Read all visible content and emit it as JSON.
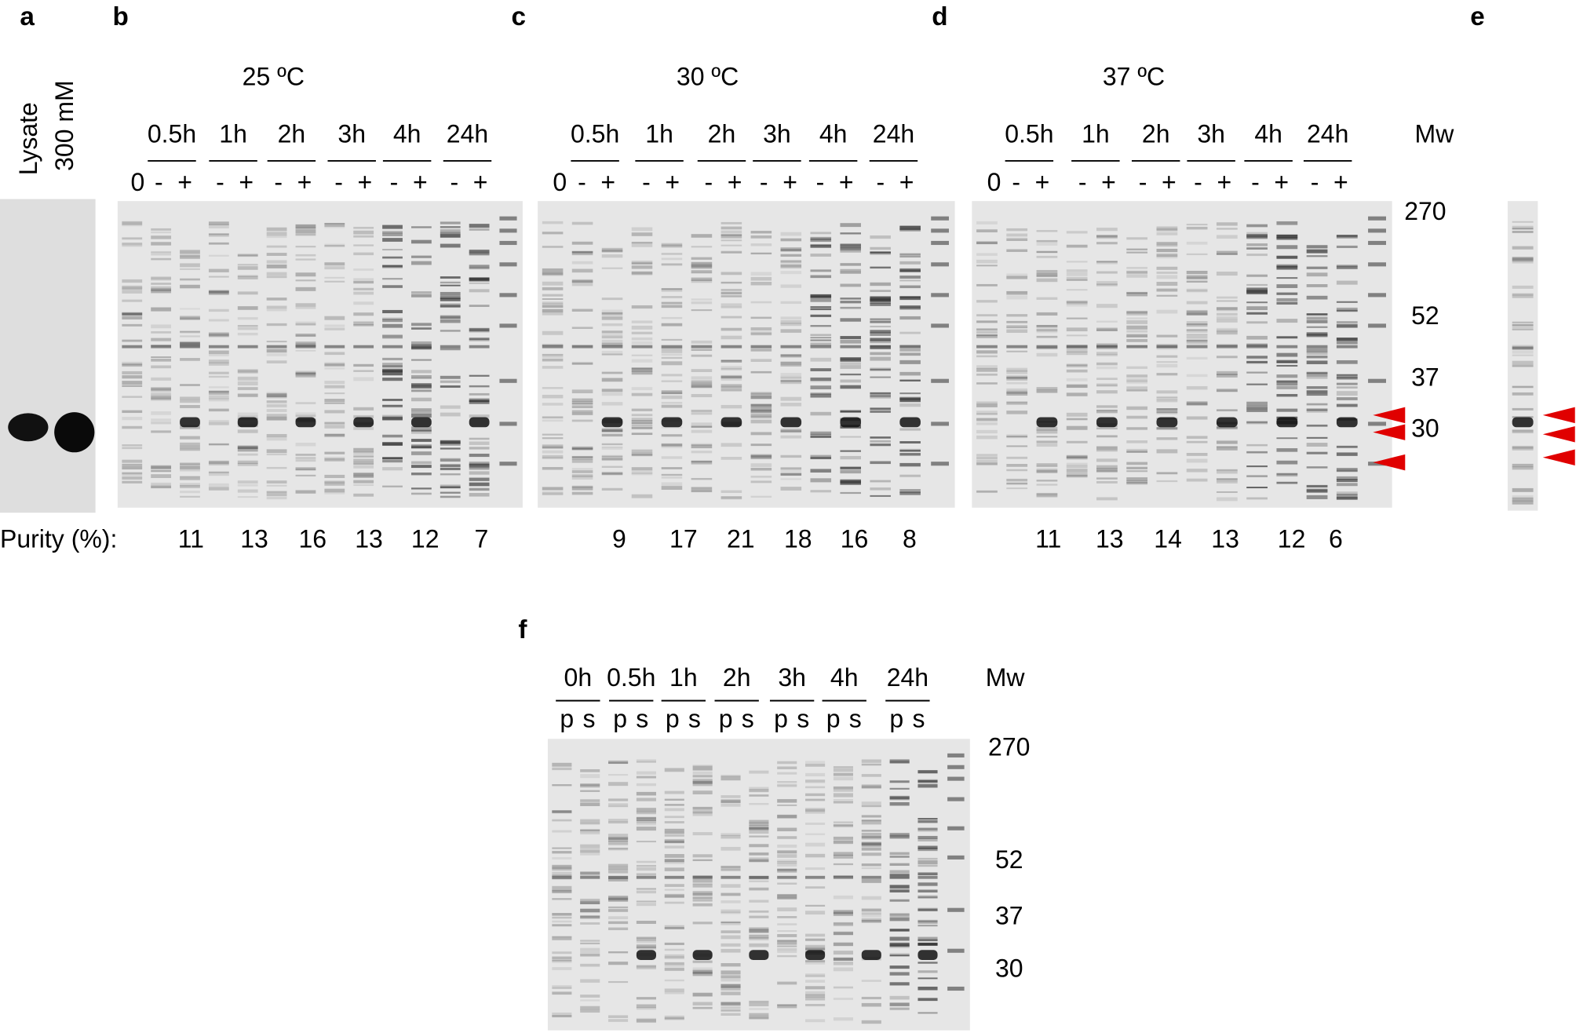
{
  "panel_a": {
    "label": "a",
    "lanes": [
      "Lysate",
      "300 mM"
    ]
  },
  "gels": [
    {
      "label": "b",
      "temperature": "25 ºC",
      "zero": "0",
      "minus": "-",
      "plus": "+",
      "times": [
        "0.5h",
        "1h",
        "2h",
        "3h",
        "4h",
        "24h"
      ],
      "purity": [
        11,
        13,
        16,
        13,
        12,
        7
      ]
    },
    {
      "label": "c",
      "temperature": "30 ºC",
      "zero": "0",
      "minus": "-",
      "plus": "+",
      "times": [
        "0.5h",
        "1h",
        "2h",
        "3h",
        "4h",
        "24h"
      ],
      "purity": [
        9,
        17,
        21,
        18,
        16,
        8
      ]
    },
    {
      "label": "d",
      "temperature": "37 ºC",
      "zero": "0",
      "minus": "-",
      "plus": "+",
      "times": [
        "0.5h",
        "1h",
        "2h",
        "3h",
        "4h",
        "24h"
      ],
      "purity": [
        11,
        13,
        14,
        13,
        12,
        6
      ]
    }
  ],
  "purity_label": "Purity (%):",
  "mw_label": "Mw",
  "mw_markers": [
    "270",
    "52",
    "37",
    "30"
  ],
  "panel_e": {
    "label": "e"
  },
  "panel_f": {
    "label": "f",
    "times": [
      "0h",
      "0.5h",
      "1h",
      "2h",
      "3h",
      "4h",
      "24h"
    ],
    "pellet": "p",
    "soluble": "s",
    "mw_label": "Mw",
    "mw_markers": [
      "270",
      "52",
      "37",
      "30"
    ]
  }
}
